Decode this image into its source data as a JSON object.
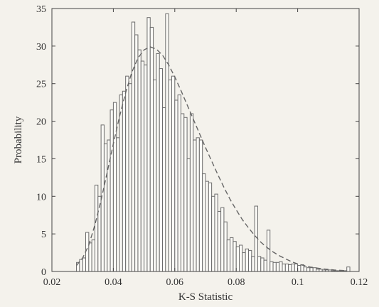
{
  "chart_data": {
    "type": "bar",
    "title": "",
    "xlabel": "K-S Statistic",
    "ylabel": "Probability",
    "xlim": [
      0.02,
      0.12
    ],
    "ylim": [
      0,
      35
    ],
    "xticks": [
      0.02,
      0.04,
      0.06,
      0.08,
      0.1,
      0.12
    ],
    "xtick_labels": [
      "0.02",
      "0.04",
      "0.06",
      "0.08",
      "0.1",
      "0.12"
    ],
    "yticks": [
      0,
      5,
      10,
      15,
      20,
      25,
      30,
      35
    ],
    "ytick_labels": [
      "0",
      "5",
      "10",
      "15",
      "20",
      "25",
      "30",
      "35"
    ],
    "grid": false,
    "legend": "none",
    "bin_width": 0.001,
    "bin_centers": [
      0.0285,
      0.0295,
      0.0305,
      0.0315,
      0.0325,
      0.0335,
      0.0345,
      0.0355,
      0.0365,
      0.0375,
      0.0385,
      0.0395,
      0.0405,
      0.0415,
      0.0425,
      0.0435,
      0.0445,
      0.0455,
      0.0465,
      0.0475,
      0.0485,
      0.0495,
      0.0505,
      0.0515,
      0.0525,
      0.0535,
      0.0545,
      0.0555,
      0.0565,
      0.0575,
      0.0585,
      0.0595,
      0.0605,
      0.0615,
      0.0625,
      0.0635,
      0.0645,
      0.0655,
      0.0665,
      0.0675,
      0.0685,
      0.0695,
      0.0705,
      0.0715,
      0.0725,
      0.0735,
      0.0745,
      0.0755,
      0.0765,
      0.0775,
      0.0785,
      0.0795,
      0.0805,
      0.0815,
      0.0825,
      0.0835,
      0.0845,
      0.0855,
      0.0865,
      0.0875,
      0.0885,
      0.0895,
      0.0905,
      0.0915,
      0.0925,
      0.0935,
      0.0945,
      0.0955,
      0.0965,
      0.0975,
      0.0985,
      0.0995,
      0.1005,
      0.1015,
      0.1025,
      0.1035,
      0.1045,
      0.1055,
      0.1065,
      0.1075,
      0.1085,
      0.1095,
      0.1105,
      0.1115,
      0.1125,
      0.1135,
      0.1145,
      0.1155,
      0.1165
    ],
    "values": [
      1.2,
      1.6,
      1.8,
      5.2,
      3.8,
      4.2,
      11.5,
      10,
      19.5,
      17,
      17.5,
      21.5,
      22.5,
      17.8,
      23.5,
      24,
      26,
      25,
      33.2,
      31.5,
      29.5,
      28,
      27.5,
      33.8,
      32.5,
      25.5,
      29,
      27,
      21.8,
      34.3,
      25.5,
      26,
      22.8,
      23.5,
      21,
      20.5,
      15,
      21,
      17.5,
      17.8,
      17.5,
      13,
      12,
      11.8,
      10,
      10.3,
      8,
      8.5,
      6.6,
      4.2,
      4.5,
      4,
      3.3,
      3.5,
      2.5,
      3,
      2.8,
      2,
      8.7,
      2,
      1.8,
      1.5,
      5.5,
      1.3,
      1.2,
      1.2,
      1.3,
      1,
      1,
      0.9,
      1,
      1,
      0.8,
      0.9,
      0.6,
      0.5,
      0.5,
      0.5,
      0.3,
      0.3,
      0.2,
      0.2,
      0.2,
      0.1,
      0.1,
      0.1,
      0.1,
      0.1,
      0.6
    ],
    "fit_curve": {
      "style": "dashed",
      "x": [
        0.028,
        0.03,
        0.032,
        0.034,
        0.036,
        0.038,
        0.04,
        0.042,
        0.044,
        0.046,
        0.048,
        0.05,
        0.052,
        0.054,
        0.056,
        0.058,
        0.06,
        0.062,
        0.064,
        0.066,
        0.068,
        0.07,
        0.072,
        0.074,
        0.076,
        0.078,
        0.08,
        0.082,
        0.084,
        0.086,
        0.088,
        0.09,
        0.092,
        0.094,
        0.096,
        0.098,
        0.1,
        0.104,
        0.108,
        0.112,
        0.116
      ],
      "y": [
        0.8,
        1.8,
        3.5,
        6.2,
        9.5,
        13.2,
        17,
        20.6,
        23.8,
        26.5,
        28.4,
        29.5,
        29.9,
        29.6,
        28.8,
        27.5,
        25.9,
        24.1,
        22.2,
        20.3,
        18.4,
        16.5,
        14.7,
        12.9,
        11.2,
        9.6,
        8.2,
        6.9,
        5.8,
        4.8,
        3.9,
        3.2,
        2.6,
        2.1,
        1.7,
        1.3,
        1,
        0.6,
        0.35,
        0.2,
        0.1
      ]
    }
  },
  "colors": {
    "background": "#f4f2ec",
    "bar_fill": "#fbfaf6",
    "bar_edge": "#6b6b6b",
    "axis": "#444444",
    "curve": "#666666"
  }
}
